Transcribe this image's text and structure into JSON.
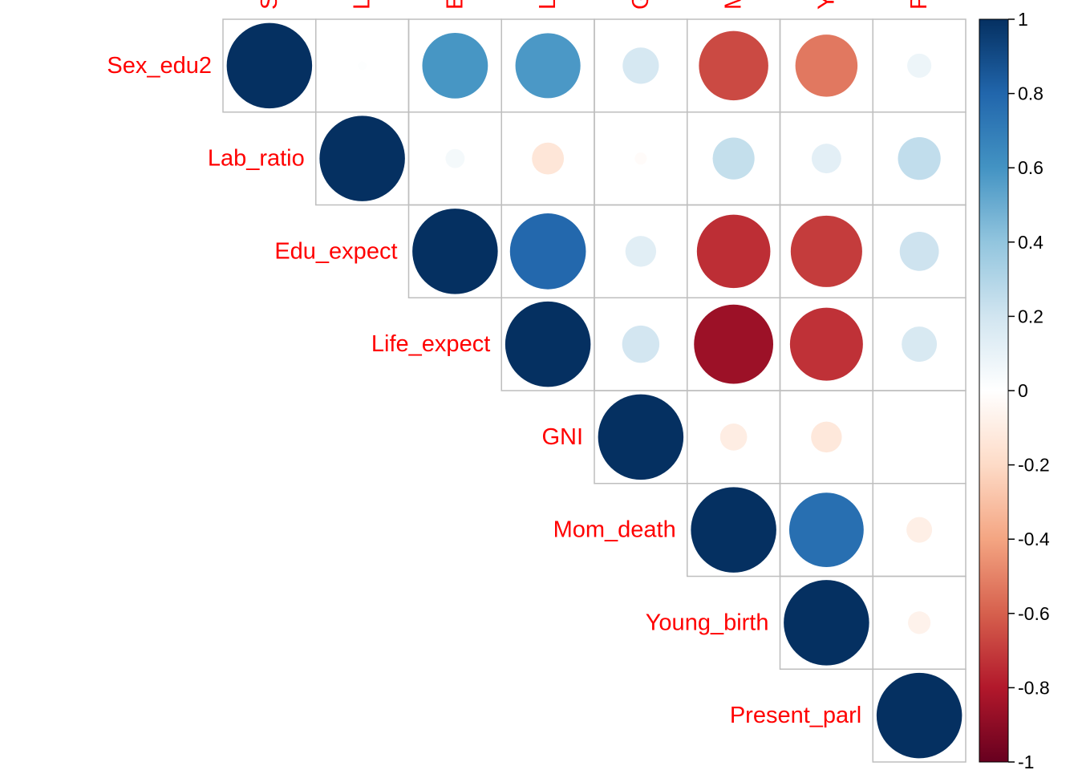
{
  "chart_data": {
    "type": "heatmap",
    "subtype": "correlation-circle-upper",
    "variables": [
      "Sex_edu2",
      "Lab_ratio",
      "Edu_expect",
      "Life_expect",
      "GNI",
      "Mom_death",
      "Young_birth",
      "Present_parl"
    ],
    "matrix": [
      [
        1.0,
        0.01,
        0.59,
        0.58,
        0.18,
        -0.66,
        -0.53,
        0.08
      ],
      [
        0.01,
        1.0,
        0.05,
        -0.14,
        -0.02,
        0.24,
        0.12,
        0.25
      ],
      [
        0.59,
        0.05,
        1.0,
        0.79,
        0.13,
        -0.74,
        -0.7,
        0.21
      ],
      [
        0.58,
        -0.14,
        0.79,
        1.0,
        0.19,
        -0.86,
        -0.73,
        0.17
      ],
      [
        0.18,
        -0.02,
        0.13,
        0.19,
        1.0,
        -0.1,
        -0.13,
        0.0
      ],
      [
        -0.66,
        0.24,
        -0.74,
        -0.86,
        -0.1,
        1.0,
        0.76,
        -0.09
      ],
      [
        -0.53,
        0.12,
        -0.7,
        -0.73,
        -0.13,
        0.76,
        1.0,
        -0.07
      ],
      [
        0.08,
        0.25,
        0.21,
        0.17,
        0.0,
        -0.09,
        -0.07,
        1.0
      ]
    ],
    "legend": {
      "position": "right",
      "range": [
        -1,
        1
      ],
      "ticks": [
        "1",
        "0.8",
        "0.6",
        "0.4",
        "0.2",
        "0",
        "-0.2",
        "-0.4",
        "-0.6",
        "-0.8",
        "-1"
      ]
    },
    "colors": {
      "label": "#ff0000",
      "grid": "#bebebe",
      "palette": [
        "#67001f",
        "#b2182b",
        "#d6604d",
        "#f4a582",
        "#fddbc7",
        "#ffffff",
        "#d1e5f0",
        "#92c5de",
        "#4393c3",
        "#2166ac",
        "#053061"
      ]
    }
  }
}
